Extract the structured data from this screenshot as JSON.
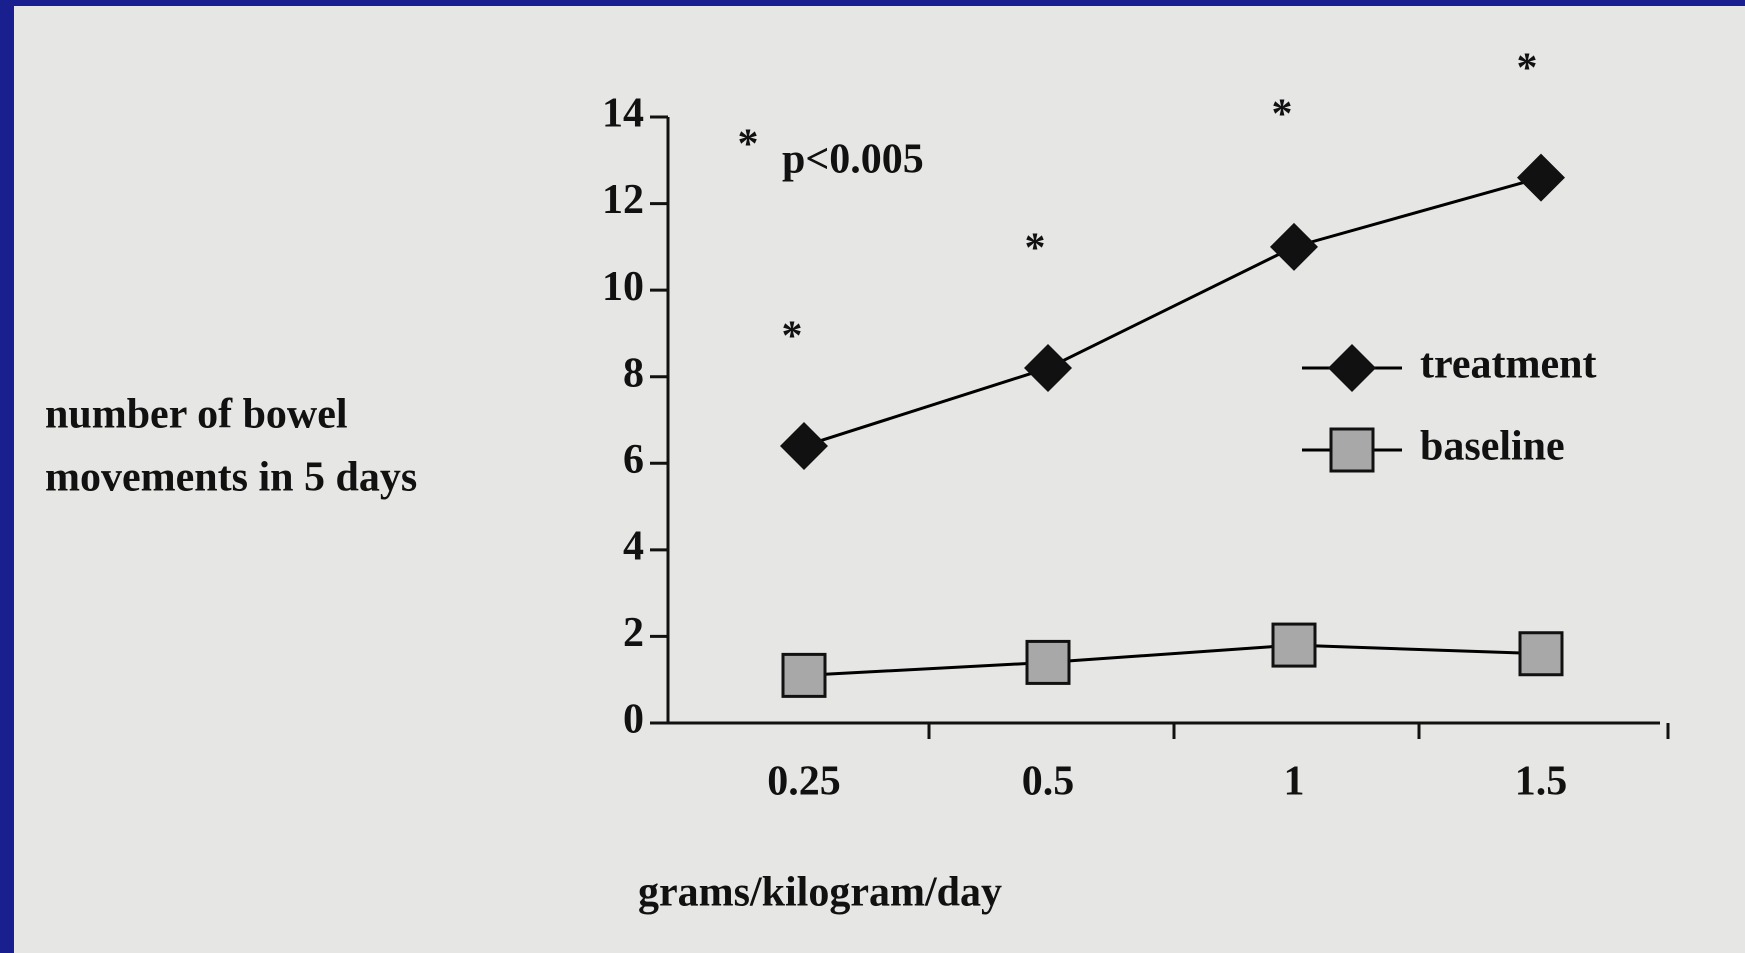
{
  "chart_data": {
    "type": "line",
    "categories": [
      "0.25",
      "0.5",
      "1",
      "1.5"
    ],
    "series": [
      {
        "name": "treatment",
        "color": "#000000",
        "marker": "diamond",
        "values": [
          6.4,
          8.2,
          11,
          12.6
        ]
      },
      {
        "name": "baseline",
        "color": "#000000",
        "marker": "square",
        "values": [
          1.1,
          1.4,
          1.8,
          1.6
        ]
      }
    ],
    "ylim": [
      0,
      14
    ],
    "yticks": [
      0,
      2,
      4,
      6,
      8,
      10,
      12,
      14
    ],
    "ylabel": [
      "number of bowel",
      "movements in  5 days"
    ],
    "xlabel": "grams/kilogram/day",
    "annotations": [
      "*",
      "p<0.005",
      "*",
      "*",
      "*",
      "*"
    ],
    "legend": "right"
  }
}
